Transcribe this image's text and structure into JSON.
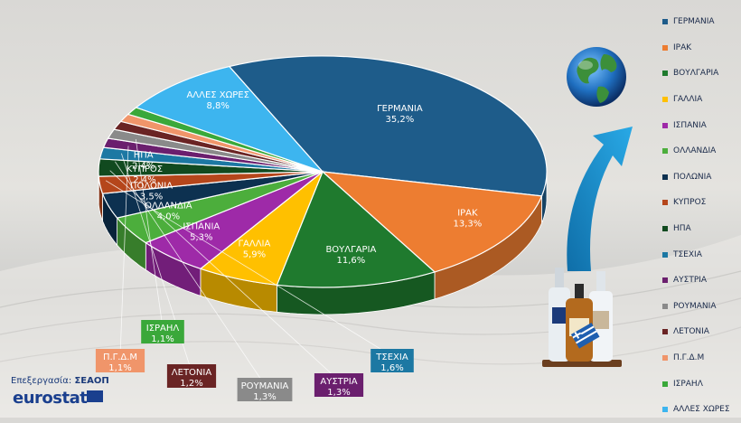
{
  "credit": {
    "prefix": "Επεξεργασία:",
    "org": "ΣΕΑΟΠ"
  },
  "logo": {
    "text": "eurostat",
    "icon": "eu-flag-icon"
  },
  "decor": {
    "globe_icon": "globe-icon",
    "arrow_icon": "arrow-up-right-icon",
    "bottles_icon": "bottles-icon"
  },
  "chart_data": {
    "type": "pie",
    "title": "",
    "legend_position": "right",
    "slices": [
      {
        "label": "ΓΕΡΜΑΝΙΑ",
        "value": 35.2,
        "text": "35,2%",
        "color": "#1e5c8a"
      },
      {
        "label": "ΙΡΑΚ",
        "value": 13.3,
        "text": "13,3%",
        "color": "#ed7d31"
      },
      {
        "label": "ΒΟΥΛΓΑΡΙΑ",
        "value": 11.6,
        "text": "11,6%",
        "color": "#1f7a2e"
      },
      {
        "label": "ΓΑΛΛΙΑ",
        "value": 5.9,
        "text": "5,9%",
        "color": "#ffc000"
      },
      {
        "label": "ΙΣΠΑΝΙΑ",
        "value": 5.3,
        "text": "5,3%",
        "color": "#9e2aa8"
      },
      {
        "label": "ΟΛΛΑΝΔΙΑ",
        "value": 4.0,
        "text": "4,0%",
        "color": "#4cae3c"
      },
      {
        "label": "ΠΟΛΩΝΙΑ",
        "value": 3.5,
        "text": "3,5%",
        "color": "#0d3150"
      },
      {
        "label": "ΚΥΠΡΟΣ",
        "value": 2.4,
        "text": "2,4%",
        "color": "#b5461b"
      },
      {
        "label": "ΗΠΑ",
        "value": 2.4,
        "text": "2,4%",
        "color": "#114a1f"
      },
      {
        "label": "ΤΣΕΧΙΑ",
        "value": 1.6,
        "text": "1,6%",
        "color": "#1c78a3"
      },
      {
        "label": "ΑΥΣΤΡΙΑ",
        "value": 1.3,
        "text": "1,3%",
        "color": "#6b1f6e"
      },
      {
        "label": "ΡΟΥΜΑΝΙΑ",
        "value": 1.3,
        "text": "1,3%",
        "color": "#8a8a8a"
      },
      {
        "label": "ΛΕΤΟΝΙΑ",
        "value": 1.2,
        "text": "1,2%",
        "color": "#6a2424"
      },
      {
        "label": "Π.Γ.Δ.Μ",
        "value": 1.1,
        "text": "1,1%",
        "color": "#f0956a"
      },
      {
        "label": "ΙΣΡΑΗΛ",
        "value": 1.1,
        "text": "1,1%",
        "color": "#3aa83a"
      },
      {
        "label": "ΑΛΛΕΣ ΧΩΡΕΣ",
        "value": 8.8,
        "text": "8,8%",
        "color": "#3db5ef"
      }
    ]
  }
}
